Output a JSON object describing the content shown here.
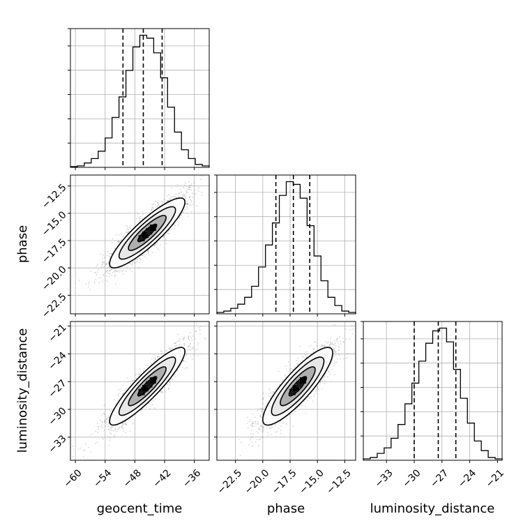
{
  "chart_data": {
    "type": "corner",
    "parameters": [
      "geocent_time",
      "phase",
      "luminosity_distance"
    ],
    "axis_labels": {
      "geocent_time": "geocent_time",
      "phase": "phase",
      "luminosity_distance": "luminosity_distance"
    },
    "ranges": {
      "geocent_time": [
        -61,
        -33
      ],
      "phase": [
        -24.2,
        -11.5
      ],
      "luminosity_distance": [
        -35.5,
        -20.5
      ]
    },
    "ticks": {
      "geocent_time": [
        -60,
        -54,
        -48,
        -42,
        -36
      ],
      "phase": [
        -22.5,
        -20.0,
        -17.5,
        -15.0,
        -12.5
      ],
      "luminosity_distance": [
        -33,
        -30,
        -27,
        -24,
        -21
      ]
    },
    "tick_labels": {
      "geocent_time": [
        "−60",
        "−54",
        "−48",
        "−42",
        "−36"
      ],
      "phase": [
        "−22.5",
        "−20.0",
        "−17.5",
        "−15.0",
        "−12.5"
      ],
      "luminosity_distance": [
        "−33",
        "−30",
        "−27",
        "−24",
        "−21"
      ]
    },
    "quantiles": {
      "geocent_time": [
        -50.4,
        -46.3,
        -42.5
      ],
      "phase": [
        -18.8,
        -17.2,
        -15.7
      ],
      "luminosity_distance": [
        -30.0,
        -27.4,
        -25.5
      ]
    },
    "histograms": {
      "geocent_time": {
        "edges": [
          -61,
          -59.6,
          -58.2,
          -56.8,
          -55.4,
          -54,
          -52.6,
          -51.2,
          -49.8,
          -48.4,
          -47,
          -45.6,
          -44.2,
          -42.8,
          -41.4,
          -40,
          -38.6,
          -37.2,
          -35.8,
          -34.4,
          -33
        ],
        "counts": [
          0.005,
          0.01,
          0.03,
          0.06,
          0.11,
          0.2,
          0.34,
          0.48,
          0.66,
          0.82,
          0.9,
          0.88,
          0.78,
          0.61,
          0.41,
          0.24,
          0.12,
          0.06,
          0.02,
          0.01
        ]
      },
      "phase": {
        "edges": [
          -24.2,
          -23.565,
          -22.93,
          -22.295,
          -21.66,
          -21.025,
          -20.39,
          -19.755,
          -19.12,
          -18.485,
          -17.85,
          -17.215,
          -16.58,
          -15.945,
          -15.31,
          -14.675,
          -14.04,
          -13.405,
          -12.77,
          -12.135,
          -11.5
        ],
        "counts": [
          0.01,
          0.02,
          0.04,
          0.07,
          0.12,
          0.2,
          0.34,
          0.5,
          0.66,
          0.86,
          0.96,
          0.94,
          0.84,
          0.64,
          0.42,
          0.24,
          0.12,
          0.06,
          0.02,
          0.01
        ]
      },
      "luminosity_distance": {
        "edges": [
          -35.5,
          -34.75,
          -34,
          -33.25,
          -32.5,
          -31.75,
          -31,
          -30.25,
          -29.5,
          -28.75,
          -28,
          -27.25,
          -26.5,
          -25.75,
          -25,
          -24.25,
          -23.5,
          -22.75,
          -22,
          -21.25,
          -20.5
        ],
        "counts": [
          0.01,
          0.02,
          0.05,
          0.09,
          0.16,
          0.26,
          0.41,
          0.56,
          0.72,
          0.85,
          0.94,
          0.96,
          0.86,
          0.66,
          0.45,
          0.27,
          0.14,
          0.07,
          0.02,
          0.01
        ]
      }
    },
    "pairs": [
      {
        "x": "geocent_time",
        "y": "phase",
        "mean": [
          -45.5,
          -16.8
        ],
        "sd": [
          3.8,
          1.6
        ],
        "corr": 0.88
      },
      {
        "x": "geocent_time",
        "y": "luminosity_distance",
        "mean": [
          -45.5,
          -27.5
        ],
        "sd": [
          3.8,
          2.1
        ],
        "corr": 0.9
      },
      {
        "x": "phase",
        "y": "luminosity_distance",
        "mean": [
          -16.8,
          -27.5
        ],
        "sd": [
          1.6,
          2.1
        ],
        "corr": 0.86
      }
    ],
    "contour_levels_sigma": [
      0.5,
      1.0,
      1.5,
      2.0
    ],
    "samples_per_panel": 2500,
    "grid": true,
    "colors": {
      "line": "#000000",
      "grid": "#b0b0b0",
      "samples": "#8a8a8a"
    }
  }
}
